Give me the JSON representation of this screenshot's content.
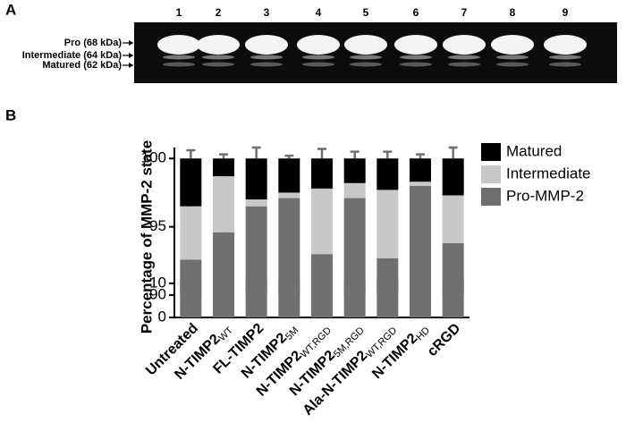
{
  "panel_a": {
    "label": "A",
    "lanes": [
      "1",
      "2",
      "3",
      "4",
      "5",
      "6",
      "7",
      "8",
      "9"
    ],
    "band_labels": [
      "Pro (68 kDa)",
      "Intermediate (64 kDa)",
      "Matured (62 kDa)"
    ]
  },
  "chart_data": {
    "type": "stacked_bar",
    "panel_label": "B",
    "y_label": "Percentage of MMP-2 state",
    "categories": [
      "Untreated",
      "N-TIMP2",
      "FL-TIMP2",
      "N-TIMP2",
      "N-TIMP2",
      "N-TIMP2",
      "Ala-N-TIMP2",
      "N-TIMP2",
      "cRGD"
    ],
    "category_subscripts": [
      null,
      "WT",
      null,
      "5M",
      "WT,RGD",
      "5M,RGD",
      "WT,RGD",
      "HD",
      null
    ],
    "series": [
      {
        "name": "Pro-MMP-2",
        "color": "#707070",
        "values": [
          92.6,
          94.6,
          96.5,
          97.1,
          93.0,
          97.1,
          92.7,
          98.0,
          93.8
        ],
        "errors": [
          0.2,
          0.7,
          0.6,
          0.2,
          1.3,
          0.3,
          0.3,
          0.2,
          1.0
        ]
      },
      {
        "name": "Intermediate",
        "color": "#c8c8c8",
        "values": [
          3.9,
          4.1,
          0.5,
          0.4,
          4.8,
          1.1,
          5.0,
          0.3,
          3.5
        ],
        "errors": [
          0.8,
          0.6,
          0.4,
          0.2,
          1.6,
          0.3,
          0.1,
          0.2,
          0.1
        ]
      },
      {
        "name": "Matured",
        "color": "#000000",
        "values": [
          3.5,
          1.3,
          3.0,
          2.5,
          2.2,
          1.8,
          2.3,
          1.7,
          2.7
        ],
        "errors": [
          0.6,
          0.3,
          0.9,
          0.2,
          0.7,
          0.5,
          0.5,
          0.3,
          1.2
        ]
      }
    ],
    "ylim": [
      0,
      100.8
    ],
    "y_break": [
      11,
      90
    ],
    "yticks": [
      0,
      10,
      90,
      95,
      100
    ],
    "error_color": "#707070",
    "legend": "upper right"
  }
}
